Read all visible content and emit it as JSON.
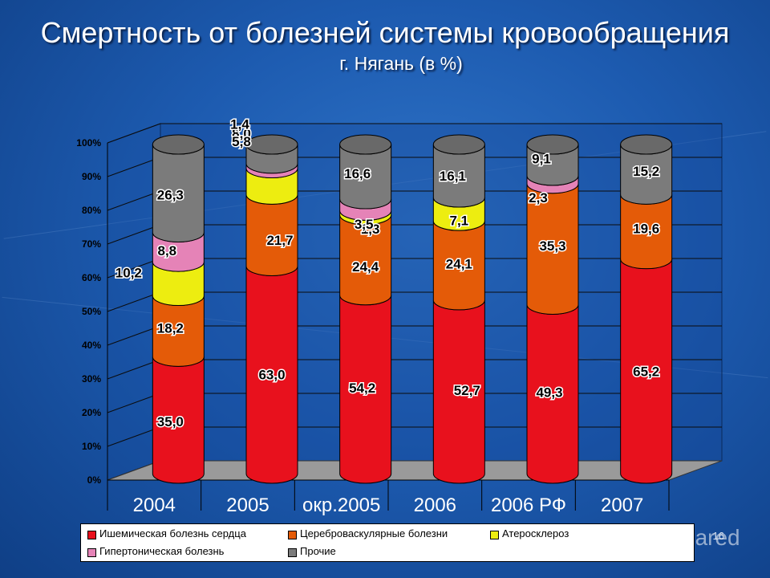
{
  "title": "Смертность от болезней системы кровообращения",
  "subtitle": "г. Нягань (в %)",
  "page_number": "16",
  "watermark": "MyShared",
  "chart_data": {
    "type": "bar",
    "stacked": true,
    "three_d": true,
    "categories": [
      "2004",
      "2005",
      "окр.2005",
      "2006",
      "2006 РФ",
      "2007"
    ],
    "y_ticks": [
      "0%",
      "10%",
      "20%",
      "30%",
      "40%",
      "50%",
      "60%",
      "70%",
      "80%",
      "90%",
      "100%"
    ],
    "ylim": [
      0,
      100
    ],
    "legend_position": "bottom",
    "series": [
      {
        "name": "Ишемическая болезнь сердца",
        "color": "#e8111d",
        "values": [
          35.0,
          63.0,
          54.2,
          52.7,
          49.3,
          65.2
        ],
        "labels": [
          "35,0",
          "63,0",
          "54,2",
          "52,7",
          "49,3",
          "65,2"
        ]
      },
      {
        "name": "Цереброваскулярные болезни",
        "color": "#e45b08",
        "values": [
          18.2,
          21.7,
          24.4,
          24.1,
          35.3,
          19.6
        ],
        "labels": [
          "18,2",
          "21,7",
          "24,4",
          "24,1",
          "35,3",
          "19,6"
        ]
      },
      {
        "name": "Атеросклероз",
        "color": "#eded10",
        "values": [
          10.2,
          8.0,
          1.3,
          7.1,
          0,
          0
        ],
        "labels": [
          "10,2",
          "8,0",
          "1,3",
          "7,1",
          "",
          ""
        ]
      },
      {
        "name": "Гипертоническая болезнь",
        "color": "#e583b7",
        "values": [
          8.8,
          1.4,
          3.5,
          0,
          2.3,
          0
        ],
        "labels": [
          "8,8",
          "1,4",
          "3,5",
          "",
          "2,3",
          ""
        ]
      },
      {
        "name": "Прочие",
        "color": "#7b7b7b",
        "values": [
          26.3,
          5.8,
          16.6,
          16.1,
          9.1,
          15.2
        ],
        "labels": [
          "26,3",
          "5,8",
          "16,6",
          "16,1",
          "9,1",
          "15,2"
        ]
      }
    ]
  }
}
